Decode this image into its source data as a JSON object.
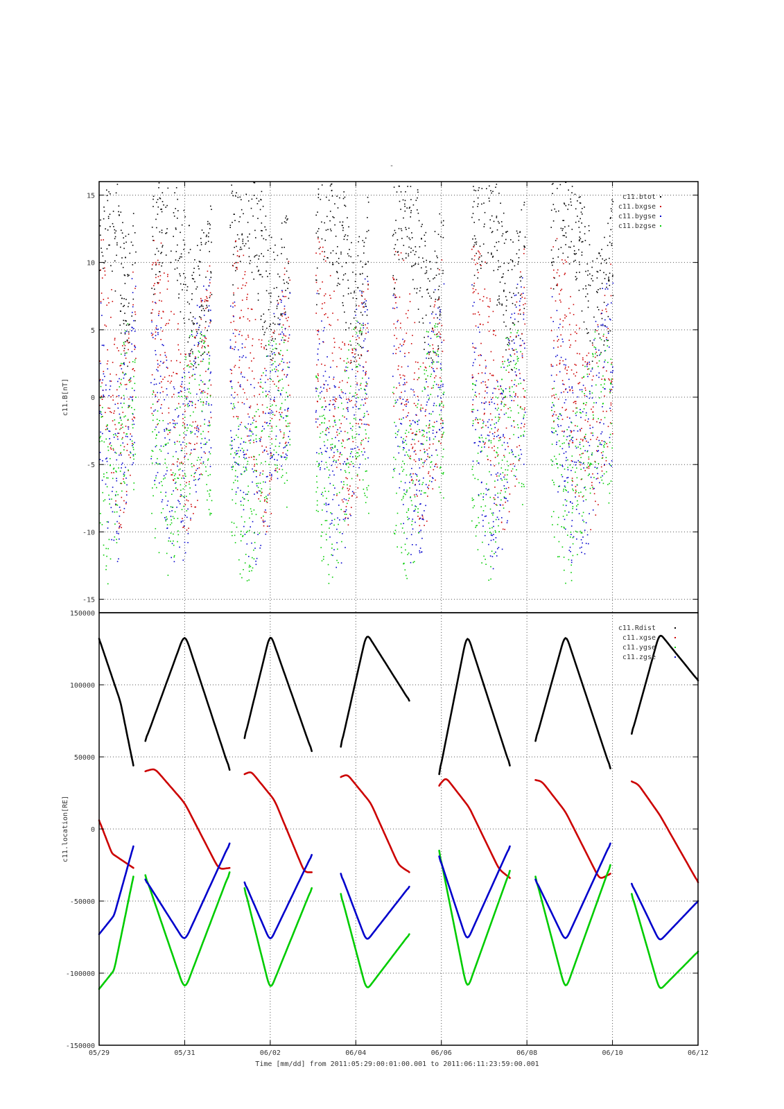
{
  "figure_title": "-",
  "footer": {
    "xlabel": "Time [mm/dd]  from 2011:05:29:00:01:00.001  to  2011:06:11:23:59:00.001"
  },
  "colors": {
    "black": "#000000",
    "red": "#cc0000",
    "blue": "#0000cc",
    "green": "#00cc00",
    "grid": "#555555"
  },
  "chart_data": [
    {
      "type": "scatter",
      "ylabel": "c11.B[nT]",
      "ylim": [
        -16,
        16
      ],
      "xlim_days": [
        0,
        14
      ],
      "x_ticks": [
        "05/29",
        "05/31",
        "06/02",
        "06/04",
        "06/06",
        "06/08",
        "06/10",
        "06/12"
      ],
      "y_ticks": [
        -15,
        -10,
        -5,
        0,
        5,
        10,
        15
      ],
      "grid": true,
      "legend_position": "top-right",
      "series": [
        {
          "name": "c11.btot",
          "color": "#000000"
        },
        {
          "name": "c11.bxgse",
          "color": "#cc0000"
        },
        {
          "name": "c11.bygse",
          "color": "#0000cc"
        },
        {
          "name": "c11.bzgse",
          "color": "#00cc00"
        }
      ],
      "orbit_windows_days": [
        [
          0.0,
          0.85
        ],
        [
          1.2,
          2.62
        ],
        [
          3.05,
          4.45
        ],
        [
          5.05,
          6.3
        ],
        [
          6.85,
          8.05
        ],
        [
          8.7,
          9.95
        ],
        [
          10.55,
          12.0
        ]
      ],
      "periapsis_days": [
        1.05,
        2.95,
        4.8,
        6.65,
        8.55,
        10.35
      ]
    },
    {
      "type": "line",
      "ylabel": "c11.location[RE]",
      "ylim": [
        -150000,
        150000
      ],
      "xlim_days": [
        0,
        14
      ],
      "x_ticks": [
        "05/29",
        "05/31",
        "06/02",
        "06/04",
        "06/06",
        "06/08",
        "06/10",
        "06/12"
      ],
      "y_ticks": [
        "-150000",
        "-100000",
        "-50000",
        "0",
        "50000",
        "100000",
        "150000"
      ],
      "grid": true,
      "legend_position": "top-right",
      "series": [
        {
          "name": "c11.Rdist",
          "color": "#000000",
          "segments": [
            {
              "x": [
                0.0,
                0.5,
                0.8
              ],
              "y": [
                132000,
                88000,
                44000
              ]
            },
            {
              "x": [
                1.08,
                2.0,
                3.05
              ],
              "y": [
                61000,
                136000,
                41000
              ]
            },
            {
              "x": [
                3.4,
                4.0,
                4.97
              ],
              "y": [
                63000,
                136000,
                54000
              ]
            },
            {
              "x": [
                5.65,
                6.25,
                7.25
              ],
              "y": [
                57000,
                136000,
                89000
              ]
            },
            {
              "x": [
                7.95,
                8.6,
                9.6
              ],
              "y": [
                38000,
                136000,
                44000
              ]
            },
            {
              "x": [
                10.2,
                10.9,
                11.95
              ],
              "y": [
                61000,
                136000,
                42000
              ]
            },
            {
              "x": [
                12.45,
                13.1,
                14.0
              ],
              "y": [
                66000,
                136000,
                103000
              ]
            }
          ]
        },
        {
          "name": "c11.xgse",
          "color": "#cc0000",
          "segments": [
            {
              "x": [
                0.0,
                0.3,
                0.8
              ],
              "y": [
                6000,
                -17000,
                -27000
              ]
            },
            {
              "x": [
                1.08,
                1.3,
                2.0,
                2.8,
                3.05
              ],
              "y": [
                40000,
                42000,
                18000,
                -28000,
                -27000
              ]
            },
            {
              "x": [
                3.4,
                3.55,
                4.1,
                4.8,
                4.97
              ],
              "y": [
                38000,
                40000,
                20000,
                -30000,
                -30000
              ]
            },
            {
              "x": [
                5.65,
                5.8,
                6.35,
                7.0,
                7.25
              ],
              "y": [
                36000,
                38000,
                18000,
                -25000,
                -30000
              ]
            },
            {
              "x": [
                7.95,
                8.1,
                8.65,
                9.35,
                9.6
              ],
              "y": [
                30000,
                36000,
                15000,
                -28000,
                -34000
              ]
            },
            {
              "x": [
                10.2,
                10.35,
                10.9,
                11.7,
                11.95
              ],
              "y": [
                34000,
                33000,
                12000,
                -35000,
                -31000
              ]
            },
            {
              "x": [
                12.45,
                12.6,
                13.1,
                14.0
              ],
              "y": [
                33000,
                31000,
                10000,
                -37000
              ]
            }
          ]
        },
        {
          "name": "c11.ygse",
          "color": "#00cc00",
          "segments": [
            {
              "x": [
                0.0,
                0.35,
                0.8
              ],
              "y": [
                -111000,
                -98000,
                -33000
              ]
            },
            {
              "x": [
                1.08,
                2.0,
                3.05
              ],
              "y": [
                -32000,
                -112000,
                -30000
              ]
            },
            {
              "x": [
                3.4,
                4.0,
                4.97
              ],
              "y": [
                -41000,
                -112000,
                -41000
              ]
            },
            {
              "x": [
                5.65,
                6.25,
                7.25
              ],
              "y": [
                -45000,
                -112000,
                -73000
              ]
            },
            {
              "x": [
                7.95,
                8.6,
                9.6
              ],
              "y": [
                -15000,
                -112000,
                -29000
              ]
            },
            {
              "x": [
                10.2,
                10.9,
                11.95
              ],
              "y": [
                -33000,
                -112000,
                -25000
              ]
            },
            {
              "x": [
                12.45,
                13.1,
                14.0
              ],
              "y": [
                -45000,
                -112000,
                -85000
              ]
            }
          ]
        },
        {
          "name": "c11.zgse",
          "color": "#0000cc",
          "segments": [
            {
              "x": [
                0.0,
                0.35,
                0.8
              ],
              "y": [
                -73000,
                -60000,
                -12000
              ]
            },
            {
              "x": [
                1.08,
                2.0,
                3.05
              ],
              "y": [
                -35000,
                -78000,
                -10000
              ]
            },
            {
              "x": [
                3.4,
                4.0,
                4.97
              ],
              "y": [
                -37000,
                -78000,
                -18000
              ]
            },
            {
              "x": [
                5.65,
                6.25,
                7.25
              ],
              "y": [
                -31000,
                -78000,
                -40000
              ]
            },
            {
              "x": [
                7.95,
                8.6,
                9.6
              ],
              "y": [
                -19000,
                -78000,
                -12000
              ]
            },
            {
              "x": [
                10.2,
                10.9,
                11.95
              ],
              "y": [
                -35000,
                -78000,
                -10000
              ]
            },
            {
              "x": [
                12.45,
                13.1,
                14.0
              ],
              "y": [
                -38000,
                -78000,
                -50000
              ]
            }
          ]
        }
      ]
    }
  ]
}
